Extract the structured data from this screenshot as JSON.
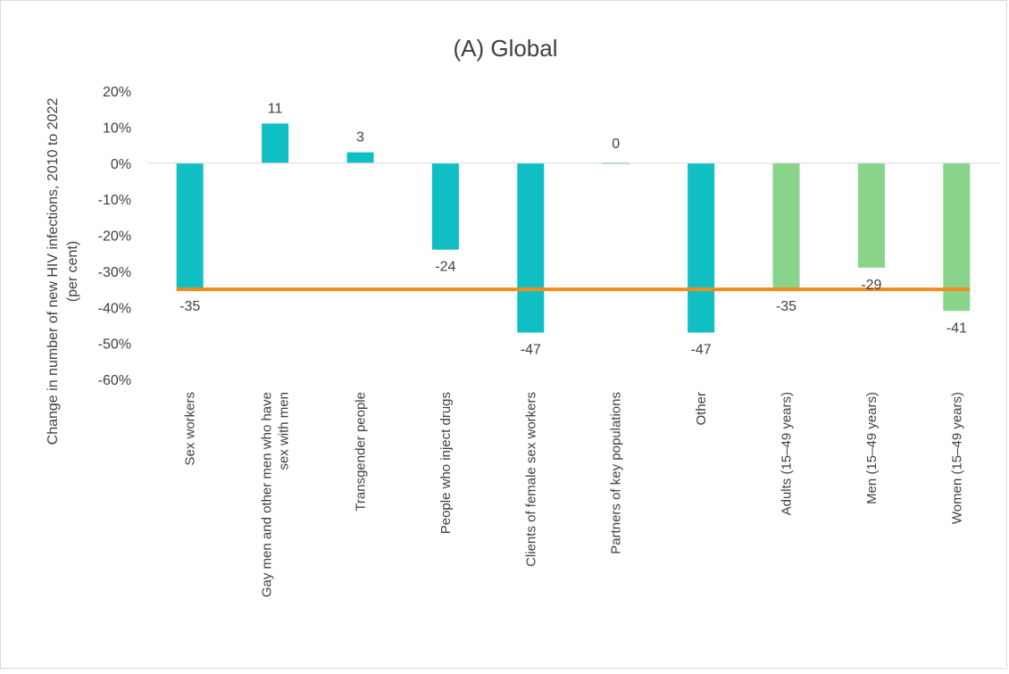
{
  "chart_data": {
    "type": "bar",
    "title": "(A) Global",
    "ylabel_lines": [
      "Change in number of new HIV infections, 2010 to 2022",
      "(per cent)"
    ],
    "ylim": [
      -60,
      20
    ],
    "yticks": [
      "20%",
      "10%",
      "0%",
      "-10%",
      "-20%",
      "-30%",
      "-40%",
      "-50%",
      "-60%"
    ],
    "categories": [
      [
        "Sex workers"
      ],
      [
        "Gay men and other men who have",
        "sex with men"
      ],
      [
        "Transgender people"
      ],
      [
        "People who inject drugs"
      ],
      [
        "Clients of female sex workers"
      ],
      [
        "Partners of key populations"
      ],
      [
        "Other"
      ],
      [
        "Adults (15–49 years)"
      ],
      [
        "Men (15–49 years)"
      ],
      [
        "Women (15–49 years)"
      ]
    ],
    "values": [
      -35,
      11,
      3,
      -24,
      -47,
      0,
      -47,
      -35,
      -29,
      -41
    ],
    "value_labels": [
      "-35",
      "11",
      "3",
      "-24",
      "-47",
      "0",
      "-47",
      "-35",
      "-29",
      "-41"
    ],
    "bar_colors": [
      "#0fbfc4",
      "#0fbfc4",
      "#0fbfc4",
      "#0fbfc4",
      "#0fbfc4",
      "#0fbfc4",
      "#0fbfc4",
      "#89d38b",
      "#89d38b",
      "#89d38b"
    ],
    "reference_line": {
      "value": -35,
      "color": "#f08c1a"
    },
    "gridlines": false,
    "legend": "none"
  }
}
